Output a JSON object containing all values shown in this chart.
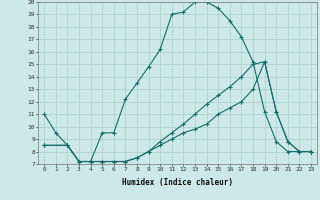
{
  "xlabel": "Humidex (Indice chaleur)",
  "bg_color": "#cce8e8",
  "line_color": "#1a6b6b",
  "grid_color": "#aacece",
  "xlim_min": -0.5,
  "xlim_max": 23.5,
  "ylim_min": 7,
  "ylim_max": 20,
  "xticks": [
    0,
    1,
    2,
    3,
    4,
    5,
    6,
    7,
    8,
    9,
    10,
    11,
    12,
    13,
    14,
    15,
    16,
    17,
    18,
    19,
    20,
    21,
    22,
    23
  ],
  "yticks": [
    7,
    8,
    9,
    10,
    11,
    12,
    13,
    14,
    15,
    16,
    17,
    18,
    19,
    20
  ],
  "line1_x": [
    0,
    1,
    2,
    3,
    4,
    5,
    6,
    7,
    8,
    9,
    10,
    11,
    12,
    13,
    14,
    15,
    16,
    17,
    18,
    19,
    20,
    21,
    22,
    23
  ],
  "line1_y": [
    11,
    9.5,
    8.5,
    7.2,
    7.2,
    9.5,
    9.5,
    12.2,
    13.5,
    14.8,
    16.2,
    19.0,
    19.2,
    20.0,
    20.0,
    19.5,
    18.5,
    17.2,
    15.2,
    11.2,
    8.8,
    8.0,
    8.0,
    8.0
  ],
  "line2_x": [
    0,
    2,
    3,
    4,
    5,
    6,
    7,
    8,
    9,
    10,
    11,
    12,
    13,
    14,
    15,
    16,
    17,
    18,
    19,
    20,
    21,
    22,
    23
  ],
  "line2_y": [
    8.5,
    8.5,
    7.2,
    7.2,
    7.2,
    7.2,
    7.2,
    7.5,
    8.0,
    8.8,
    9.5,
    10.2,
    11.0,
    11.8,
    12.5,
    13.2,
    14.0,
    15.0,
    15.2,
    11.2,
    8.8,
    8.0,
    8.0
  ],
  "line3_x": [
    0,
    2,
    3,
    4,
    5,
    6,
    7,
    8,
    9,
    10,
    11,
    12,
    13,
    14,
    15,
    16,
    17,
    18,
    19,
    20,
    21,
    22,
    23
  ],
  "line3_y": [
    8.5,
    8.5,
    7.2,
    7.2,
    7.2,
    7.2,
    7.2,
    7.5,
    8.0,
    8.5,
    9.0,
    9.5,
    9.8,
    10.2,
    11.0,
    11.5,
    12.0,
    13.0,
    15.2,
    11.2,
    8.8,
    8.0,
    8.0
  ]
}
